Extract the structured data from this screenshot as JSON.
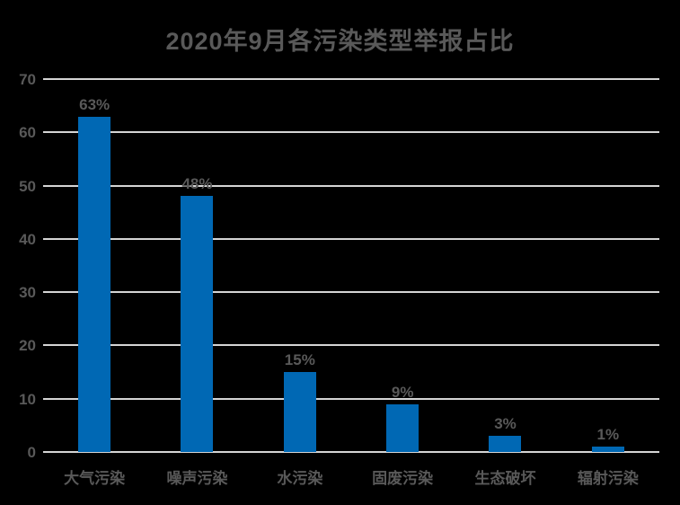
{
  "chart_data": {
    "type": "bar",
    "title": "2020年9月各污染类型举报占比",
    "categories": [
      "大气污染",
      "噪声污染",
      "水污染",
      "固废污染",
      "生态破坏",
      "辐射污染"
    ],
    "values": [
      63,
      48,
      15,
      9,
      3,
      1
    ],
    "data_labels": [
      "63%",
      "48%",
      "15%",
      "9%",
      "3%",
      "1%"
    ],
    "xlabel": "",
    "ylabel": "",
    "ylim": [
      0,
      70
    ],
    "yticks": [
      0,
      10,
      20,
      30,
      40,
      50,
      60,
      70
    ],
    "grid": true,
    "legend": false,
    "colors": {
      "background": "#000000",
      "bar": "#0068B4",
      "text": "#595959",
      "gridline": "#D5D5D5"
    }
  }
}
